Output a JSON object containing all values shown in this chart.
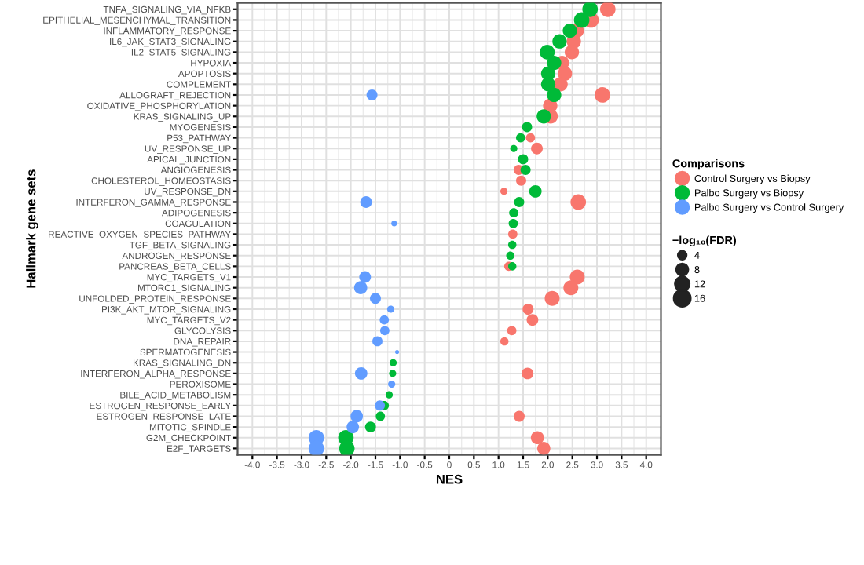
{
  "chart_data": {
    "type": "bubble",
    "orientation": "horizontal",
    "xlabel": "NES",
    "ylabel": "Hallmark gene sets",
    "legend_title": "Comparisons",
    "annotations": [
      "−log₁₀(FDR)"
    ],
    "categories": [
      "TNFA_SIGNALING_VIA_NFKB",
      "EPITHELIAL_MESENCHYMAL_TRANSITION",
      "INFLAMMATORY_RESPONSE",
      "IL6_JAK_STAT3_SIGNALING",
      "IL2_STAT5_SIGNALING",
      "HYPOXIA",
      "APOPTOSIS",
      "COMPLEMENT",
      "ALLOGRAFT_REJECTION",
      "OXIDATIVE_PHOSPHORYLATION",
      "KRAS_SIGNALING_UP",
      "MYOGENESIS",
      "P53_PATHWAY",
      "UV_RESPONSE_UP",
      "APICAL_JUNCTION",
      "ANGIOGENESIS",
      "CHOLESTEROL_HOMEOSTASIS",
      "UV_RESPONSE_DN",
      "INTERFERON_GAMMA_RESPONSE",
      "ADIPOGENESIS",
      "COAGULATION",
      "REACTIVE_OXYGEN_SPECIES_PATHWAY",
      "TGF_BETA_SIGNALING",
      "ANDROGEN_RESPONSE",
      "PANCREAS_BETA_CELLS",
      "MYC_TARGETS_V1",
      "MTORC1_SIGNALING",
      "UNFOLDED_PROTEIN_RESPONSE",
      "PI3K_AKT_MTOR_SIGNALING",
      "MYC_TARGETS_V2",
      "GLYCOLYSIS",
      "DNA_REPAIR",
      "SPERMATOGENESIS",
      "KRAS_SIGNALING_DN",
      "INTERFERON_ALPHA_RESPONSE",
      "PEROXISOME",
      "BILE_ACID_METABOLISM",
      "ESTROGEN_RESPONSE_EARLY",
      "ESTROGEN_RESPONSE_LATE",
      "MITOTIC_SPINDLE",
      "G2M_CHECKPOINT",
      "E2F_TARGETS"
    ],
    "series": [
      {
        "name": "Control Surgery vs Biopsy",
        "color": "#f8766d",
        "values": [
          3.22,
          2.88,
          2.59,
          2.53,
          2.49,
          2.29,
          2.35,
          2.26,
          3.11,
          2.05,
          2.06,
          null,
          1.65,
          1.78,
          null,
          1.41,
          1.46,
          1.11,
          2.62,
          null,
          null,
          1.29,
          null,
          null,
          1.21,
          2.6,
          2.47,
          2.09,
          1.6,
          1.69,
          1.27,
          1.12,
          null,
          null,
          1.59,
          null,
          null,
          null,
          1.42,
          null,
          1.79,
          1.92
        ],
        "sizes": [
          14,
          14,
          12,
          12,
          12,
          12,
          12,
          12,
          14,
          12,
          12,
          null,
          5,
          8,
          null,
          6,
          6,
          3,
          14,
          null,
          null,
          5,
          null,
          null,
          5,
          13,
          13,
          13,
          7,
          8,
          5,
          4,
          null,
          null,
          8,
          null,
          null,
          null,
          7,
          null,
          10,
          10
        ]
      },
      {
        "name": "Palbo Surgery vs Biopsy",
        "color": "#00ba38",
        "values": [
          2.86,
          2.69,
          2.45,
          2.24,
          1.99,
          2.13,
          2.01,
          2.01,
          2.13,
          null,
          1.92,
          1.58,
          1.45,
          1.31,
          1.5,
          1.55,
          null,
          1.75,
          1.42,
          1.31,
          1.3,
          null,
          1.28,
          1.24,
          1.28,
          null,
          null,
          null,
          null,
          null,
          null,
          null,
          null,
          -1.14,
          -1.15,
          null,
          -1.22,
          -1.32,
          -1.4,
          -1.6,
          -2.1,
          -2.08
        ],
        "sizes": [
          14,
          14,
          12,
          12,
          13,
          12,
          12,
          12,
          12,
          null,
          12,
          6,
          5,
          3,
          6,
          6,
          null,
          9,
          6,
          5,
          5,
          null,
          4,
          4,
          4,
          null,
          null,
          null,
          null,
          null,
          null,
          null,
          null,
          3,
          3,
          null,
          3,
          5,
          5,
          7,
          14,
          14
        ]
      },
      {
        "name": "Palbo Surgery vs Control Surgery",
        "color": "#619cff",
        "values": [
          null,
          null,
          null,
          null,
          null,
          null,
          null,
          null,
          -1.57,
          null,
          null,
          null,
          null,
          null,
          null,
          null,
          null,
          null,
          -1.69,
          null,
          -1.12,
          null,
          null,
          null,
          null,
          -1.71,
          -1.8,
          -1.5,
          -1.19,
          -1.32,
          -1.31,
          -1.46,
          -1.06,
          null,
          -1.79,
          -1.17,
          null,
          -1.41,
          -1.88,
          -1.96,
          -2.7,
          -2.7
        ],
        "sizes": [
          null,
          null,
          null,
          null,
          null,
          null,
          null,
          null,
          7,
          null,
          null,
          null,
          null,
          null,
          null,
          null,
          null,
          null,
          8,
          null,
          2,
          null,
          null,
          null,
          null,
          8,
          10,
          7,
          3,
          5,
          5,
          6,
          1,
          null,
          9,
          3,
          null,
          6,
          9,
          9,
          14,
          14
        ]
      }
    ],
    "size_legend": [
      4,
      8,
      12,
      16
    ],
    "xlim": [
      -4.3,
      4.3
    ],
    "xticks": [
      {
        "value": -4,
        "label": "-4.0"
      },
      -3.5,
      {
        "value": -3,
        "label": "-3.0"
      },
      -2.5,
      {
        "value": -2,
        "label": "-2.0"
      },
      -1.5,
      {
        "value": -1,
        "label": "-1.0"
      },
      -0.5,
      0,
      0.5,
      {
        "value": 1,
        "label": "1.0"
      },
      1.5,
      {
        "value": 2,
        "label": "2.0"
      },
      2.5,
      {
        "value": 3,
        "label": "3.0"
      },
      3.5,
      {
        "value": 4,
        "label": "4.0"
      }
    ],
    "grid": true,
    "legend": "right"
  }
}
